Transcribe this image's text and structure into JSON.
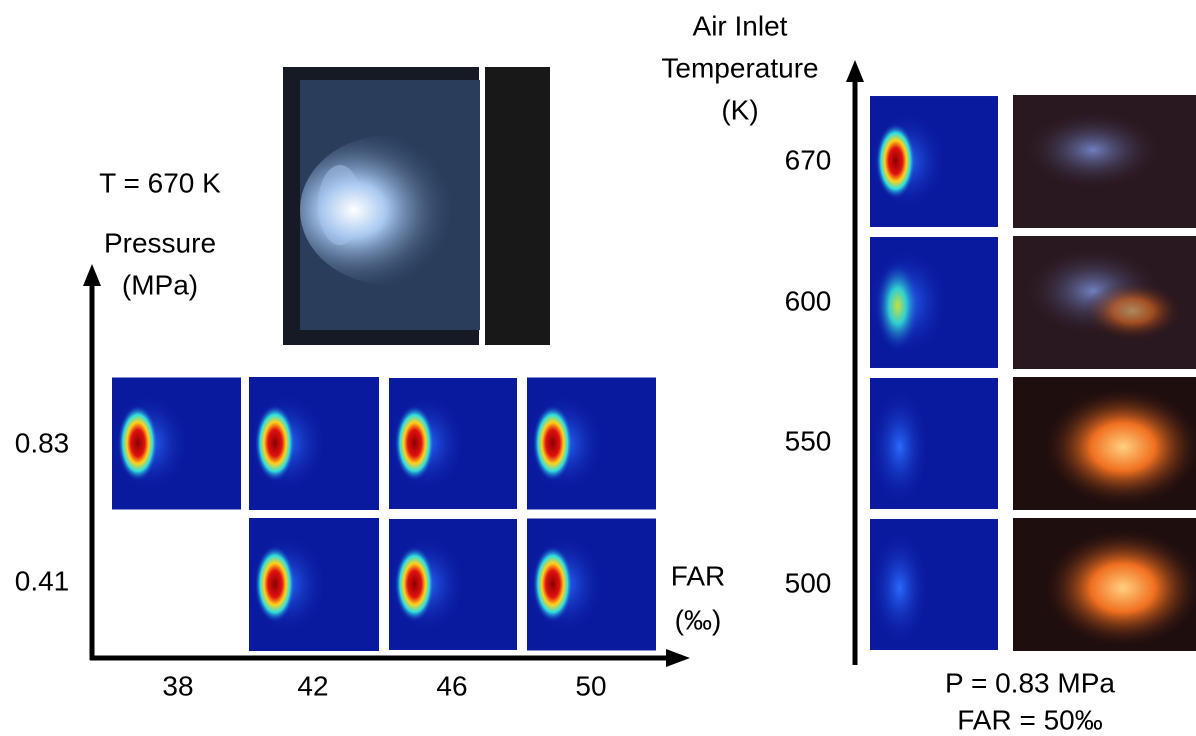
{
  "left": {
    "condition": "T = 670 K",
    "y_axis_label": [
      "Pressure",
      "(MPa)"
    ],
    "y_labels": [
      "0.83",
      "0.41"
    ],
    "x_axis_label": [
      "FAR",
      "(‰)"
    ],
    "x_labels": [
      "38",
      "42",
      "46",
      "50"
    ]
  },
  "right": {
    "axis_label": [
      "Air Inlet",
      "Temperature",
      "(K)"
    ],
    "y_labels": [
      "670",
      "600",
      "550",
      "500"
    ],
    "conditions": [
      "P = 0.83 MPa",
      "FAR = 50‰"
    ]
  }
}
